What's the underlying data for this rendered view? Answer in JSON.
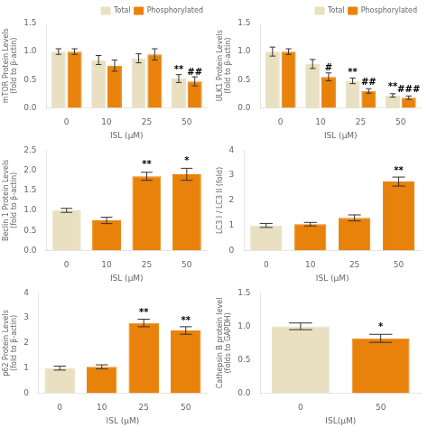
{
  "chart_data": [
    {
      "type": "bar",
      "categories": [
        "0",
        "10",
        "25",
        "50"
      ],
      "series": [
        {
          "name": "Total",
          "color": "#E8E0C0",
          "values": [
            1.0,
            0.85,
            0.88,
            0.52
          ],
          "errors": [
            0.05,
            0.08,
            0.08,
            0.07
          ]
        },
        {
          "name": "Phosphorylated",
          "color": "#E8820A",
          "values": [
            1.0,
            0.75,
            0.95,
            0.47
          ],
          "errors": [
            0.05,
            0.1,
            0.1,
            0.08
          ]
        }
      ],
      "x_label": "ISL (μM)",
      "y_label": "mTOR Protein Levels\n(fold to β-actin)",
      "ylim": [
        0.0,
        1.5
      ],
      "yticks": [
        {
          "value": 0.0,
          "label": "0.0"
        },
        0.5,
        {
          "value": 1.0,
          "label": "1.0"
        },
        1.5
      ],
      "grid": false,
      "legend": "upper right",
      "annotations": [
        {
          "text": "**",
          "category": "50",
          "series": "Total",
          "y": 0.6
        },
        {
          "text": "##",
          "category": "50",
          "series": "Phosphorylated",
          "y": 0.55
        }
      ]
    },
    {
      "type": "bar",
      "categories": [
        "0",
        "10",
        "25",
        "50"
      ],
      "series": [
        {
          "name": "Total",
          "color": "#E8E0C0",
          "values": [
            1.0,
            0.78,
            0.48,
            0.22
          ],
          "errors": [
            0.08,
            0.08,
            0.05,
            0.03
          ]
        },
        {
          "name": "Phosphorylated",
          "color": "#E8820A",
          "values": [
            1.0,
            0.55,
            0.3,
            0.18
          ],
          "errors": [
            0.05,
            0.07,
            0.04,
            0.03
          ]
        }
      ],
      "x_label": "ISL (μM)",
      "y_label": "ULK1 Protein Levels\n(fold to β-actin)",
      "ylim": [
        0.0,
        1.5
      ],
      "yticks": [
        {
          "value": 0.0,
          "label": "0.0"
        },
        0.5,
        {
          "value": 1.0,
          "label": "1.0"
        },
        1.5
      ],
      "grid": false,
      "legend": "upper right",
      "annotations": [
        {
          "text": "#",
          "category": "10",
          "series": "Phosphorylated",
          "y": 0.62
        },
        {
          "text": "**",
          "category": "25",
          "series": "Total",
          "y": 0.55
        },
        {
          "text": "##",
          "category": "25",
          "series": "Phosphorylated",
          "y": 0.37
        },
        {
          "text": "**",
          "category": "50",
          "series": "Total",
          "y": 0.29
        },
        {
          "text": "###",
          "category": "50",
          "series": "Phosphorylated",
          "y": 0.24
        }
      ]
    },
    {
      "type": "bar",
      "categories": [
        "0",
        "10",
        "25",
        "50"
      ],
      "values": [
        1.0,
        0.75,
        1.85,
        1.9
      ],
      "errors": [
        0.05,
        0.08,
        0.1,
        0.15
      ],
      "colors": [
        "#E8E0C0",
        "#E8820A",
        "#E8820A",
        "#E8820A"
      ],
      "x_label": "ISL (μM)",
      "y_label": "Beclin 1 Protein Levels\n(fold to β-actin)",
      "ylim": [
        0.0,
        2.5
      ],
      "yticks": [
        {
          "value": 0.0,
          "label": "0.0"
        },
        0.5,
        {
          "value": 1.0,
          "label": "1.0"
        },
        1.5,
        {
          "value": 2.0,
          "label": "2.0"
        },
        2.5
      ],
      "grid": false,
      "annotations": [
        {
          "text": "**",
          "category": "25",
          "y": 2.02
        },
        {
          "text": "*",
          "category": "50",
          "y": 2.12
        }
      ]
    },
    {
      "type": "bar",
      "categories": [
        "0",
        "10",
        "25",
        "50"
      ],
      "values": [
        1.0,
        1.05,
        1.3,
        2.75
      ],
      "errors": [
        0.08,
        0.07,
        0.12,
        0.18
      ],
      "colors": [
        "#E8E0C0",
        "#E8820A",
        "#E8820A",
        "#E8820A"
      ],
      "x_label": "ISL (μM)",
      "y_label": "LC3 I / LC3 II (fold)",
      "ylim": [
        0,
        4
      ],
      "yticks": [
        0,
        1,
        2,
        3,
        4
      ],
      "grid": false,
      "annotations": [
        {
          "text": "**",
          "category": "50",
          "y": 3.0
        }
      ]
    },
    {
      "type": "bar",
      "categories": [
        "0",
        "10",
        "25",
        "50"
      ],
      "values": [
        1.0,
        1.05,
        2.8,
        2.5
      ],
      "errors": [
        0.08,
        0.08,
        0.15,
        0.15
      ],
      "colors": [
        "#E8E0C0",
        "#E8820A",
        "#E8820A",
        "#E8820A"
      ],
      "x_label": "ISL (μM)",
      "y_label": "p62 Protein Levels\n(fold to β-actin)",
      "ylim": [
        0,
        4
      ],
      "yticks": [
        0,
        1,
        2,
        3,
        4
      ],
      "grid": false,
      "annotations": [
        {
          "text": "**",
          "category": "25",
          "y": 3.02
        },
        {
          "text": "**",
          "category": "50",
          "y": 2.72
        }
      ]
    },
    {
      "type": "bar",
      "categories": [
        "0",
        "50"
      ],
      "values": [
        1.0,
        0.82
      ],
      "errors": [
        0.05,
        0.06
      ],
      "colors": [
        "#E8E0C0",
        "#E8820A"
      ],
      "x_label": "ISL(μM)",
      "y_label": "Cathepsin B protein level\n(folds to GAPDH)",
      "ylim": [
        0.0,
        1.5
      ],
      "yticks": [
        {
          "value": 0.0,
          "label": "0.0"
        },
        0.5,
        {
          "value": 1.0,
          "label": "1.0"
        },
        1.5
      ],
      "grid": false,
      "annotations": [
        {
          "text": "*",
          "category": "50",
          "y": 0.92
        }
      ]
    }
  ]
}
